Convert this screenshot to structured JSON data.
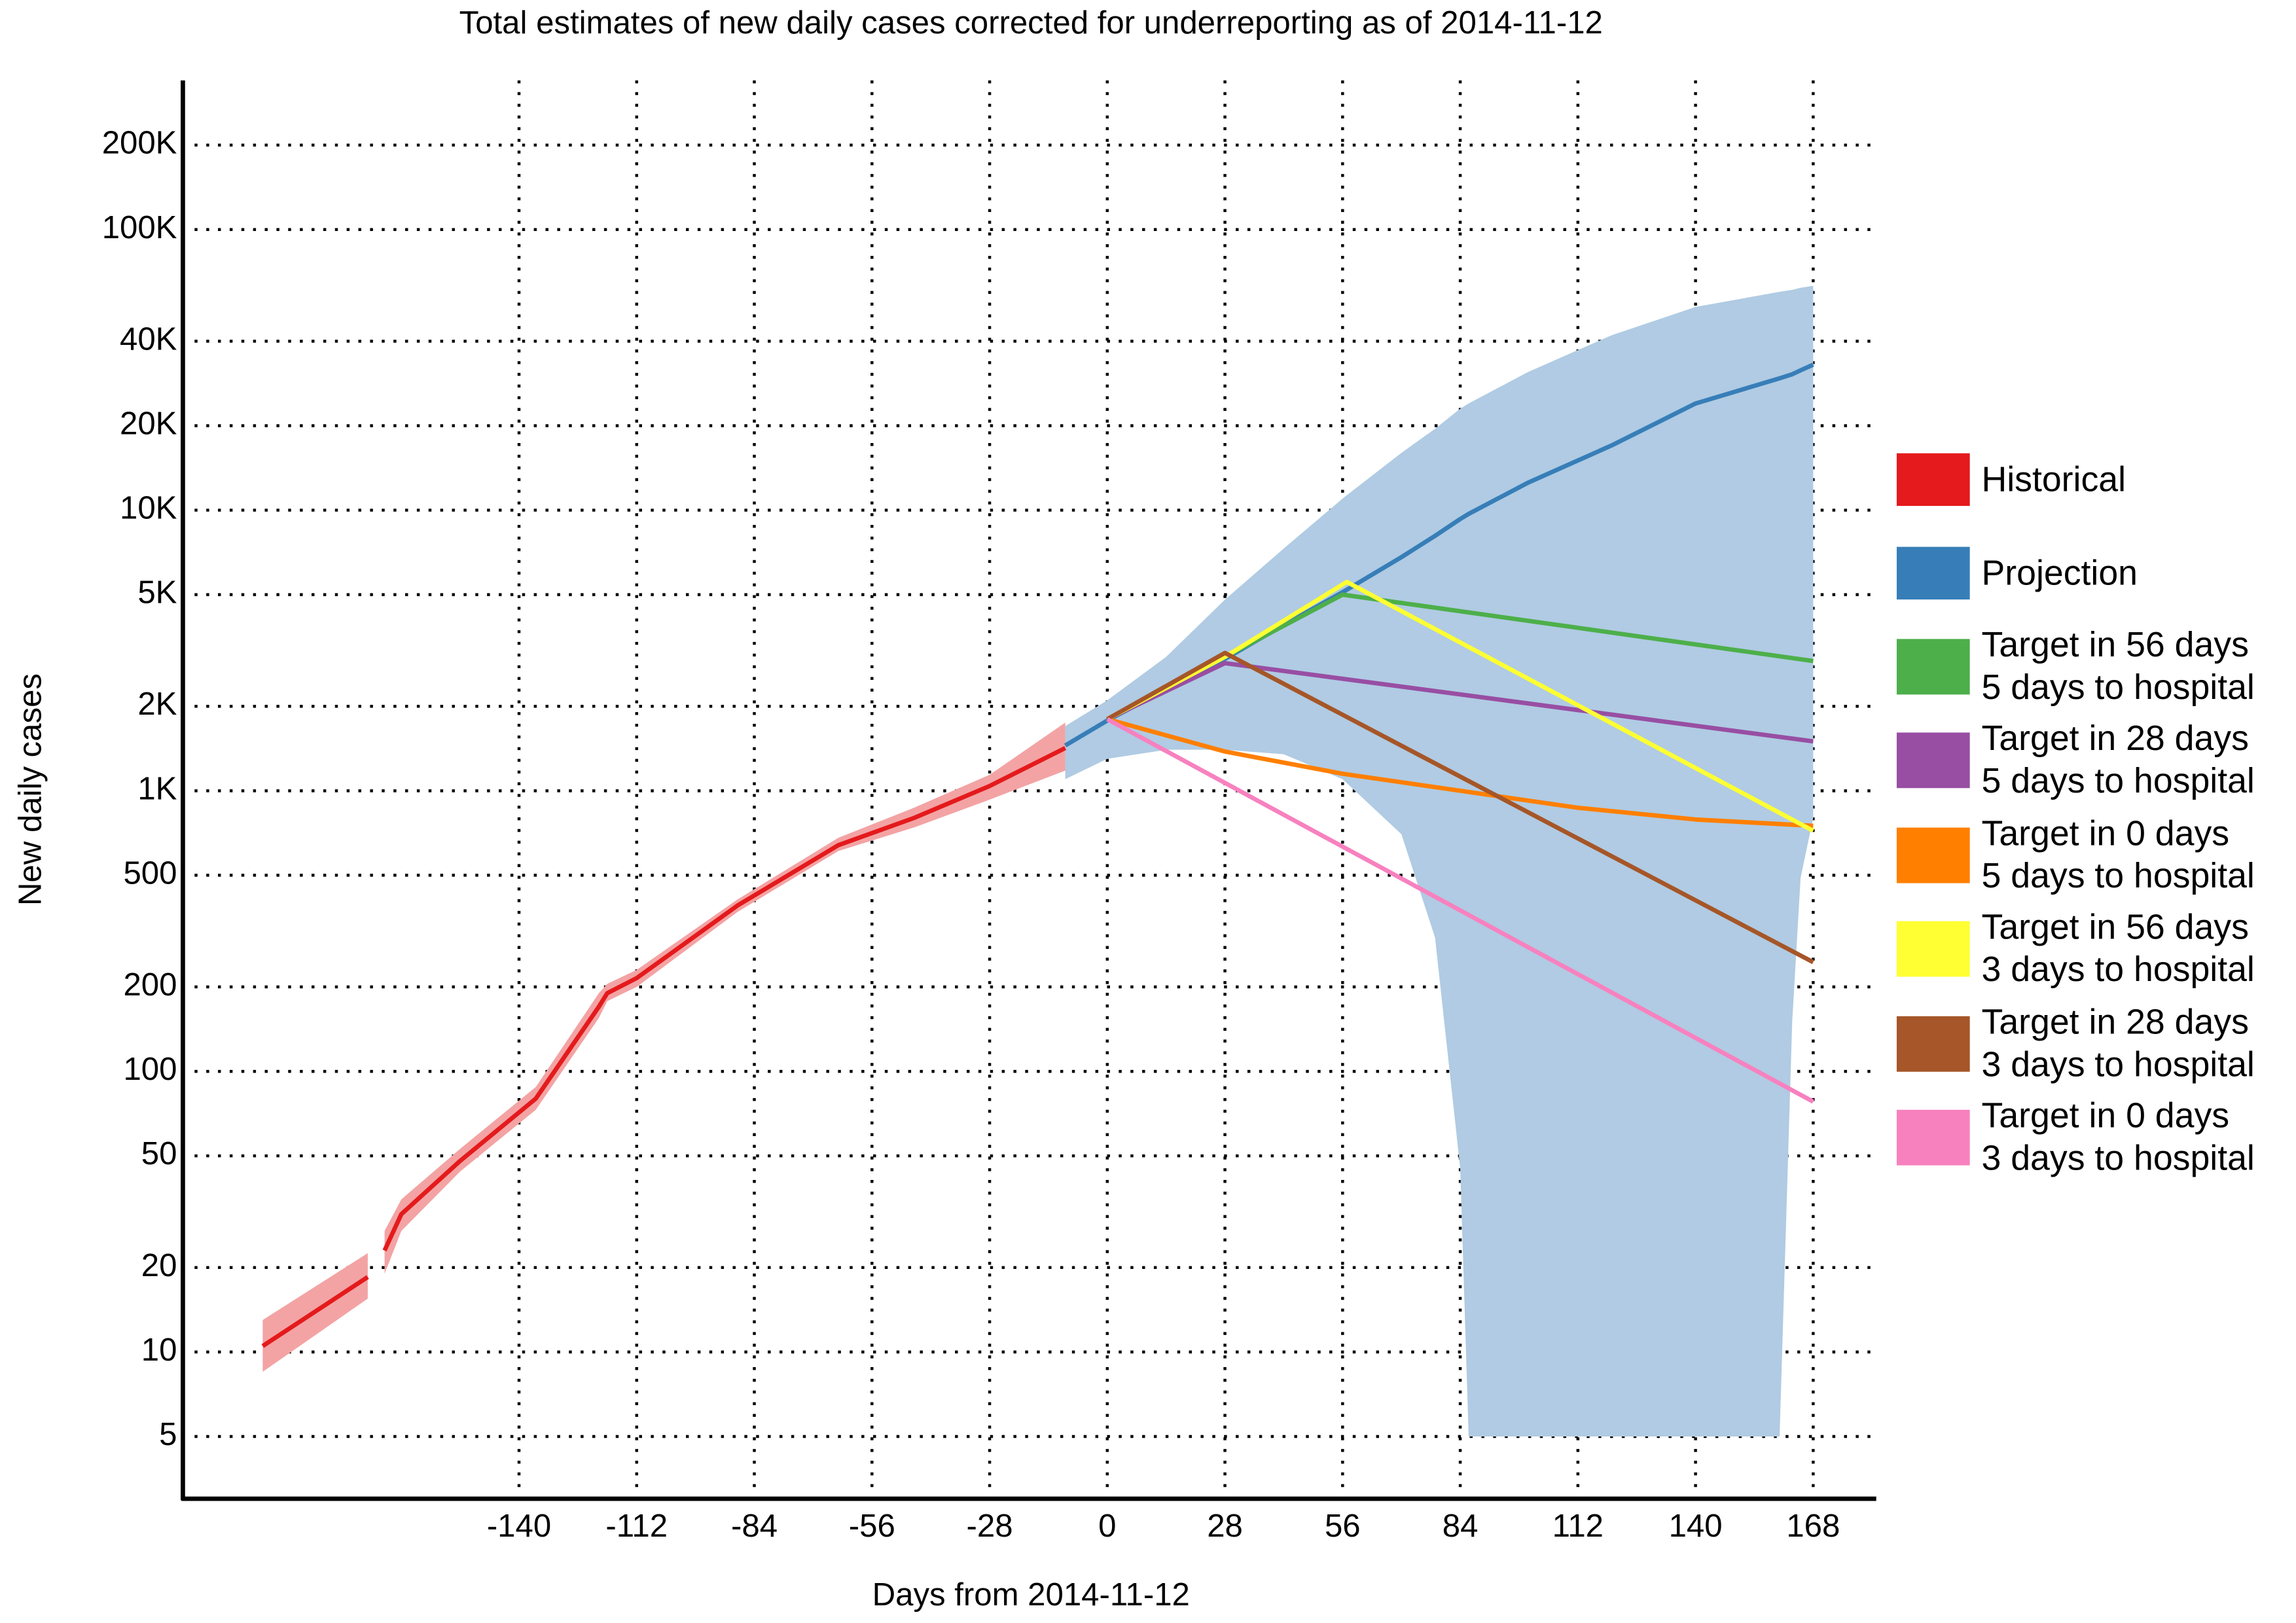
{
  "chart_data": {
    "type": "line",
    "title": "Total estimates of new daily cases corrected for underreporting as of 2014-11-12",
    "x_label": "Days from 2014-11-12",
    "y_label": "New daily cases",
    "log_y": true,
    "grid": true,
    "legend": "right",
    "xlim": [
      -220,
      183
    ],
    "ylim": [
      3,
      340000
    ],
    "xticks": [
      -140,
      -112,
      -84,
      -56,
      -28,
      0,
      28,
      56,
      84,
      112,
      140,
      168
    ],
    "yticks": [
      5,
      10,
      20,
      50,
      100,
      200,
      500,
      {
        "value": 1000,
        "label": "1K"
      },
      {
        "value": 2000,
        "label": "2K"
      },
      {
        "value": 5000,
        "label": "5K"
      },
      {
        "value": 10000,
        "label": "10K"
      },
      {
        "value": 20000,
        "label": "20K"
      },
      {
        "value": 40000,
        "label": "40K"
      },
      {
        "value": 100000,
        "label": "100K"
      },
      {
        "value": 200000,
        "label": "200K"
      }
    ],
    "series": [
      {
        "name": "Historical",
        "color": "#e41a1c",
        "band_color": "#f3a3a4",
        "x": [
          -201,
          -176,
          -174,
          -172,
          -168,
          -154,
          -136,
          -121,
          -119,
          -112,
          -88,
          -64,
          -46,
          -28,
          -10
        ],
        "values": [
          10.5,
          18.5,
          null,
          23,
          31,
          48,
          80,
          170,
          190,
          215,
          390,
          640,
          800,
          1040,
          1420
        ],
        "lower": [
          8.5,
          15.5,
          null,
          19,
          27,
          44,
          73,
          155,
          178,
          200,
          370,
          610,
          740,
          930,
          1180
        ],
        "upper": [
          13,
          22.5,
          null,
          27,
          35,
          53,
          88,
          190,
          205,
          230,
          410,
          680,
          870,
          1140,
          1750
        ]
      },
      {
        "name": "Projection",
        "color": "#377eb8",
        "band_color": "#b0cbe3",
        "x": [
          -10,
          0,
          14,
          28,
          42,
          56,
          70,
          78,
          84,
          86,
          100,
          120,
          140,
          160,
          163,
          165,
          168
        ],
        "values": [
          1450,
          1780,
          2300,
          2950,
          3900,
          5100,
          6800,
          8100,
          9300,
          9700,
          12500,
          17000,
          24000,
          29500,
          30500,
          31500,
          33000
        ],
        "lower": [
          1100,
          1300,
          1400,
          1400,
          1350,
          1100,
          700,
          300,
          45,
          5,
          5,
          5,
          5,
          5,
          150,
          490,
          800
        ],
        "upper": [
          1700,
          2100,
          3000,
          4800,
          7300,
          11000,
          16000,
          19500,
          23000,
          24000,
          31000,
          42000,
          53000,
          60000,
          61000,
          62000,
          63000
        ]
      },
      {
        "name": "Target in 56 days\n5 days to hospital",
        "color": "#4daf4a",
        "x": [
          0,
          28,
          56,
          168
        ],
        "values": [
          1800,
          3000,
          5000,
          2900
        ]
      },
      {
        "name": "Target in 28 days\n5 days to hospital",
        "color": "#984ea3",
        "x": [
          0,
          28,
          168
        ],
        "values": [
          1800,
          2850,
          1500
        ]
      },
      {
        "name": "Target in 0 days\n5 days to hospital",
        "color": "#ff7f00",
        "x": [
          0,
          28,
          56,
          84,
          112,
          140,
          168
        ],
        "values": [
          1800,
          1380,
          1150,
          1000,
          870,
          790,
          750
        ]
      },
      {
        "name": "Target in 56 days\n3 days to hospital",
        "color": "#ffff33",
        "x": [
          0,
          28,
          57,
          168
        ],
        "values": [
          1800,
          3000,
          5550,
          720
        ]
      },
      {
        "name": "Target in 28 days\n3 days to hospital",
        "color": "#a65628",
        "x": [
          0,
          28,
          168
        ],
        "values": [
          1800,
          3100,
          245
        ]
      },
      {
        "name": "Target in 0 days\n3 days to hospital",
        "color": "#f781bf",
        "x": [
          0,
          168
        ],
        "values": [
          1800,
          78
        ]
      }
    ]
  }
}
